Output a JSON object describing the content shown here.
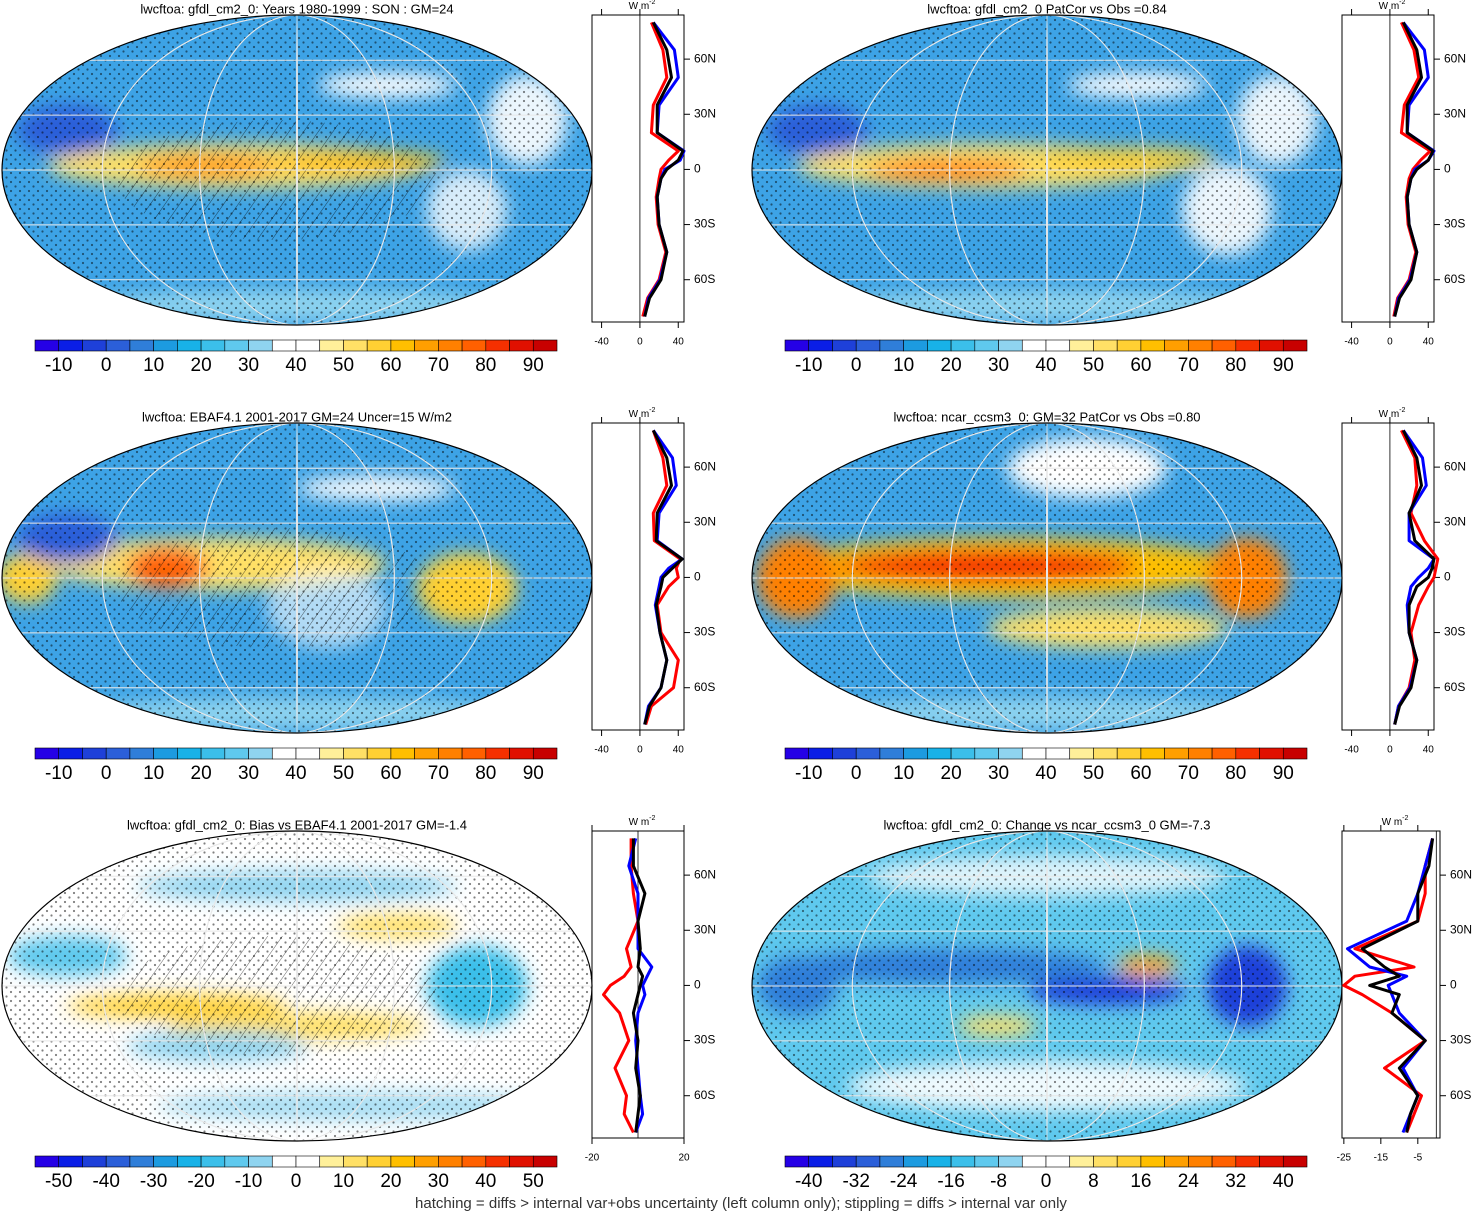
{
  "palette": [
    "#2500e6",
    "#0a1ee6",
    "#1e40d9",
    "#2b5fd9",
    "#2f7ed9",
    "#1c9be0",
    "#18b2e8",
    "#3bbfea",
    "#5fc9ee",
    "#8fd4f0",
    "#ffffff",
    "#ffffff",
    "#fff09a",
    "#ffe066",
    "#ffd033",
    "#ffbf00",
    "#ff9f00",
    "#ff8000",
    "#ff6000",
    "#f53000",
    "#e01000",
    "#c80000"
  ],
  "footnote": "hatching = diffs > internal var+obs uncertainty (left column only); stippling = diffs > internal var only",
  "chart_data": [
    {
      "type": "map",
      "title": "lwcftoa: gfdl_cm2_0: Years 1980-1999 : SON : GM=24",
      "colorbar": {
        "lim": [
          -15,
          95
        ],
        "ticks": [
          -10,
          0,
          10,
          20,
          30,
          40,
          50,
          60,
          70,
          80,
          90
        ]
      },
      "profile": {
        "type": "line",
        "unit": "W m",
        "unit_sup": "-2",
        "y": [
          -80,
          -70,
          -60,
          -45,
          -30,
          -15,
          -5,
          0,
          5,
          10,
          20,
          35,
          50,
          65,
          80
        ],
        "ylim": [
          -83,
          84
        ],
        "yticks": [
          {
            "value": -60,
            "label": "60S"
          },
          {
            "value": -30,
            "label": "30S"
          },
          0,
          {
            "value": 30,
            "label": "30N"
          },
          {
            "value": 60,
            "label": "60N"
          }
        ],
        "xlim": [
          -50,
          46
        ],
        "xticks": [
          -40,
          0,
          40
        ],
        "series": [
          {
            "color": "#ff0000",
            "values": [
              3,
              8,
              20,
              27,
              19,
              17,
              20,
              22,
              30,
              40,
              12,
              14,
              28,
              24,
              12
            ]
          },
          {
            "color": "#0000ff",
            "values": [
              5,
              9,
              21,
              28,
              20,
              18,
              22,
              26,
              42,
              46,
              18,
              20,
              40,
              36,
              14
            ]
          },
          {
            "color": "#000000",
            "values": [
              5,
              10,
              22,
              28,
              20,
              18,
              22,
              28,
              40,
              45,
              18,
              18,
              33,
              28,
              14
            ]
          }
        ]
      }
    },
    {
      "type": "map",
      "title": "lwcftoa: gfdl_cm2_0 PatCor vs Obs =0.84",
      "colorbar": {
        "lim": [
          -15,
          95
        ],
        "ticks": [
          -10,
          0,
          10,
          20,
          30,
          40,
          50,
          60,
          70,
          80,
          90
        ]
      },
      "profile": {
        "type": "line",
        "unit": "W m",
        "unit_sup": "-2",
        "y": [
          -80,
          -70,
          -60,
          -45,
          -30,
          -15,
          -5,
          0,
          5,
          10,
          20,
          35,
          50,
          65,
          80
        ],
        "ylim": [
          -83,
          84
        ],
        "yticks": [
          {
            "value": -60,
            "label": "60S"
          },
          {
            "value": -30,
            "label": "30S"
          },
          0,
          {
            "value": 30,
            "label": "30N"
          },
          {
            "value": 60,
            "label": "60N"
          }
        ],
        "xlim": [
          -50,
          46
        ],
        "xticks": [
          -40,
          0,
          40
        ],
        "series": [
          {
            "color": "#ff0000",
            "values": [
              4,
              8,
              20,
              27,
              19,
              17,
              20,
              24,
              32,
              42,
              12,
              15,
              30,
              25,
              12
            ]
          },
          {
            "color": "#0000ff",
            "values": [
              5,
              9,
              21,
              28,
              20,
              18,
              22,
              26,
              40,
              46,
              18,
              20,
              40,
              36,
              14
            ]
          },
          {
            "color": "#000000",
            "values": [
              5,
              10,
              22,
              28,
              20,
              18,
              22,
              28,
              40,
              45,
              18,
              18,
              33,
              28,
              14
            ]
          }
        ]
      }
    },
    {
      "type": "map",
      "title": "lwcftoa: EBAF4.1 2001-2017 GM=24 Uncer=15 W/m2",
      "colorbar": {
        "lim": [
          -15,
          95
        ],
        "ticks": [
          -10,
          0,
          10,
          20,
          30,
          40,
          50,
          60,
          70,
          80,
          90
        ]
      },
      "profile": {
        "type": "line",
        "unit": "W m",
        "unit_sup": "-2",
        "y": [
          -80,
          -70,
          -60,
          -45,
          -30,
          -15,
          -5,
          0,
          5,
          10,
          20,
          35,
          50,
          65,
          80
        ],
        "ylim": [
          -83,
          84
        ],
        "yticks": [
          {
            "value": -60,
            "label": "60S"
          },
          {
            "value": -30,
            "label": "30S"
          },
          0,
          {
            "value": 30,
            "label": "30N"
          },
          {
            "value": 60,
            "label": "60N"
          }
        ],
        "xlim": [
          -50,
          46
        ],
        "xticks": [
          -40,
          0,
          40
        ],
        "series": [
          {
            "color": "#ff0000",
            "values": [
              6,
              12,
              35,
              40,
              22,
              18,
              30,
              40,
              38,
              42,
              15,
              14,
              28,
              24,
              14
            ]
          },
          {
            "color": "#0000ff",
            "values": [
              5,
              9,
              22,
              28,
              21,
              16,
              20,
              22,
              30,
              44,
              18,
              20,
              38,
              34,
              14
            ]
          },
          {
            "color": "#000000",
            "values": [
              5,
              10,
              22,
              28,
              21,
              17,
              22,
              24,
              34,
              44,
              17,
              18,
              33,
              28,
              14
            ]
          }
        ]
      }
    },
    {
      "type": "map",
      "title": "lwcftoa: ncar_ccsm3_0: GM=32 PatCor vs Obs =0.80",
      "colorbar": {
        "lim": [
          -15,
          95
        ],
        "ticks": [
          -10,
          0,
          10,
          20,
          30,
          40,
          50,
          60,
          70,
          80,
          90
        ]
      },
      "profile": {
        "type": "line",
        "unit": "W m",
        "unit_sup": "-2",
        "y": [
          -80,
          -70,
          -60,
          -45,
          -30,
          -15,
          -5,
          0,
          5,
          10,
          20,
          35,
          50,
          65,
          80
        ],
        "ylim": [
          -83,
          84
        ],
        "yticks": [
          {
            "value": -60,
            "label": "60S"
          },
          {
            "value": -30,
            "label": "30S"
          },
          0,
          {
            "value": 30,
            "label": "30N"
          },
          {
            "value": 60,
            "label": "60N"
          }
        ],
        "xlim": [
          -50,
          46
        ],
        "xticks": [
          -40,
          0,
          40
        ],
        "series": [
          {
            "color": "#ff0000",
            "values": [
              5,
              9,
              20,
              26,
              22,
              30,
              40,
              46,
              48,
              50,
              36,
              22,
              28,
              26,
              12
            ]
          },
          {
            "color": "#0000ff",
            "values": [
              5,
              9,
              21,
              28,
              20,
              18,
              22,
              30,
              40,
              46,
              20,
              20,
              38,
              34,
              14
            ]
          },
          {
            "color": "#000000",
            "values": [
              5,
              10,
              22,
              28,
              20,
              20,
              28,
              40,
              44,
              46,
              26,
              20,
              33,
              28,
              14
            ]
          }
        ]
      }
    },
    {
      "type": "map",
      "title": "lwcftoa: gfdl_cm2_0: Bias vs EBAF4.1 2001-2017  GM=-1.4",
      "colorbar": {
        "lim": [
          -55,
          55
        ],
        "ticks": [
          -50,
          -40,
          -30,
          -20,
          -10,
          0,
          10,
          20,
          30,
          40,
          50
        ]
      },
      "profile": {
        "type": "line",
        "unit": "W m",
        "unit_sup": "-2",
        "y": [
          -80,
          -70,
          -60,
          -45,
          -30,
          -15,
          -5,
          0,
          5,
          10,
          20,
          35,
          50,
          65,
          80
        ],
        "ylim": [
          -83,
          84
        ],
        "yticks": [
          {
            "value": -60,
            "label": "60S"
          },
          {
            "value": -30,
            "label": "30S"
          },
          0,
          {
            "value": 30,
            "label": "30N"
          },
          {
            "value": 60,
            "label": "60N"
          }
        ],
        "xlim": [
          -20,
          20
        ],
        "xticks": [
          -20,
          20
        ],
        "series": [
          {
            "color": "#ff0000",
            "values": [
              -2,
              -6,
              -5,
              -10,
              -4,
              -8,
              -15,
              -12,
              -6,
              -3,
              -5,
              0,
              -2,
              -3,
              -3
            ]
          },
          {
            "color": "#0000ff",
            "values": [
              -1,
              2,
              1,
              0,
              -1,
              0,
              3,
              2,
              4,
              6,
              0,
              0,
              0,
              -4,
              -1
            ]
          },
          {
            "color": "#000000",
            "values": [
              -1,
              0,
              1,
              -1,
              0,
              -2,
              0,
              1,
              2,
              0,
              1,
              0,
              3,
              -2,
              -2
            ]
          }
        ]
      }
    },
    {
      "type": "map",
      "title": "lwcftoa: gfdl_cm2_0: Change vs ncar_ccsm3_0 GM=-7.3",
      "colorbar": {
        "lim": [
          -44,
          44
        ],
        "ticks": [
          -40,
          -32,
          -24,
          -16,
          -8,
          0,
          8,
          16,
          24,
          32,
          40
        ]
      },
      "profile": {
        "type": "line",
        "unit": "W m",
        "unit_sup": "-2",
        "y": [
          -80,
          -70,
          -60,
          -45,
          -30,
          -15,
          -5,
          0,
          5,
          10,
          20,
          35,
          50,
          65,
          80
        ],
        "ylim": [
          -83,
          84
        ],
        "yticks": [
          {
            "value": -60,
            "label": "60S"
          },
          {
            "value": -30,
            "label": "30S"
          },
          0,
          {
            "value": 30,
            "label": "30N"
          },
          {
            "value": 60,
            "label": "60N"
          }
        ],
        "xlim": [
          -25.5,
          1
        ],
        "xticks": [
          -25,
          -15,
          -5
        ],
        "series": [
          {
            "color": "#ff0000",
            "values": [
              -8,
              -6,
              -4,
              -14,
              -3,
              -12,
              -20,
              -25,
              -22,
              -6,
              -22,
              -5,
              -3,
              -3,
              -1
            ]
          },
          {
            "color": "#0000ff",
            "values": [
              -9,
              -7,
              -5,
              -9,
              -3,
              -10,
              -12,
              -13,
              -8,
              -18,
              -24,
              -8,
              -5,
              -3,
              -1
            ]
          },
          {
            "color": "#000000",
            "values": [
              -8,
              -7,
              -5,
              -10,
              -3,
              -12,
              -10,
              -18,
              -10,
              -14,
              -20,
              -5,
              -5,
              -2,
              -1
            ]
          }
        ]
      }
    }
  ]
}
